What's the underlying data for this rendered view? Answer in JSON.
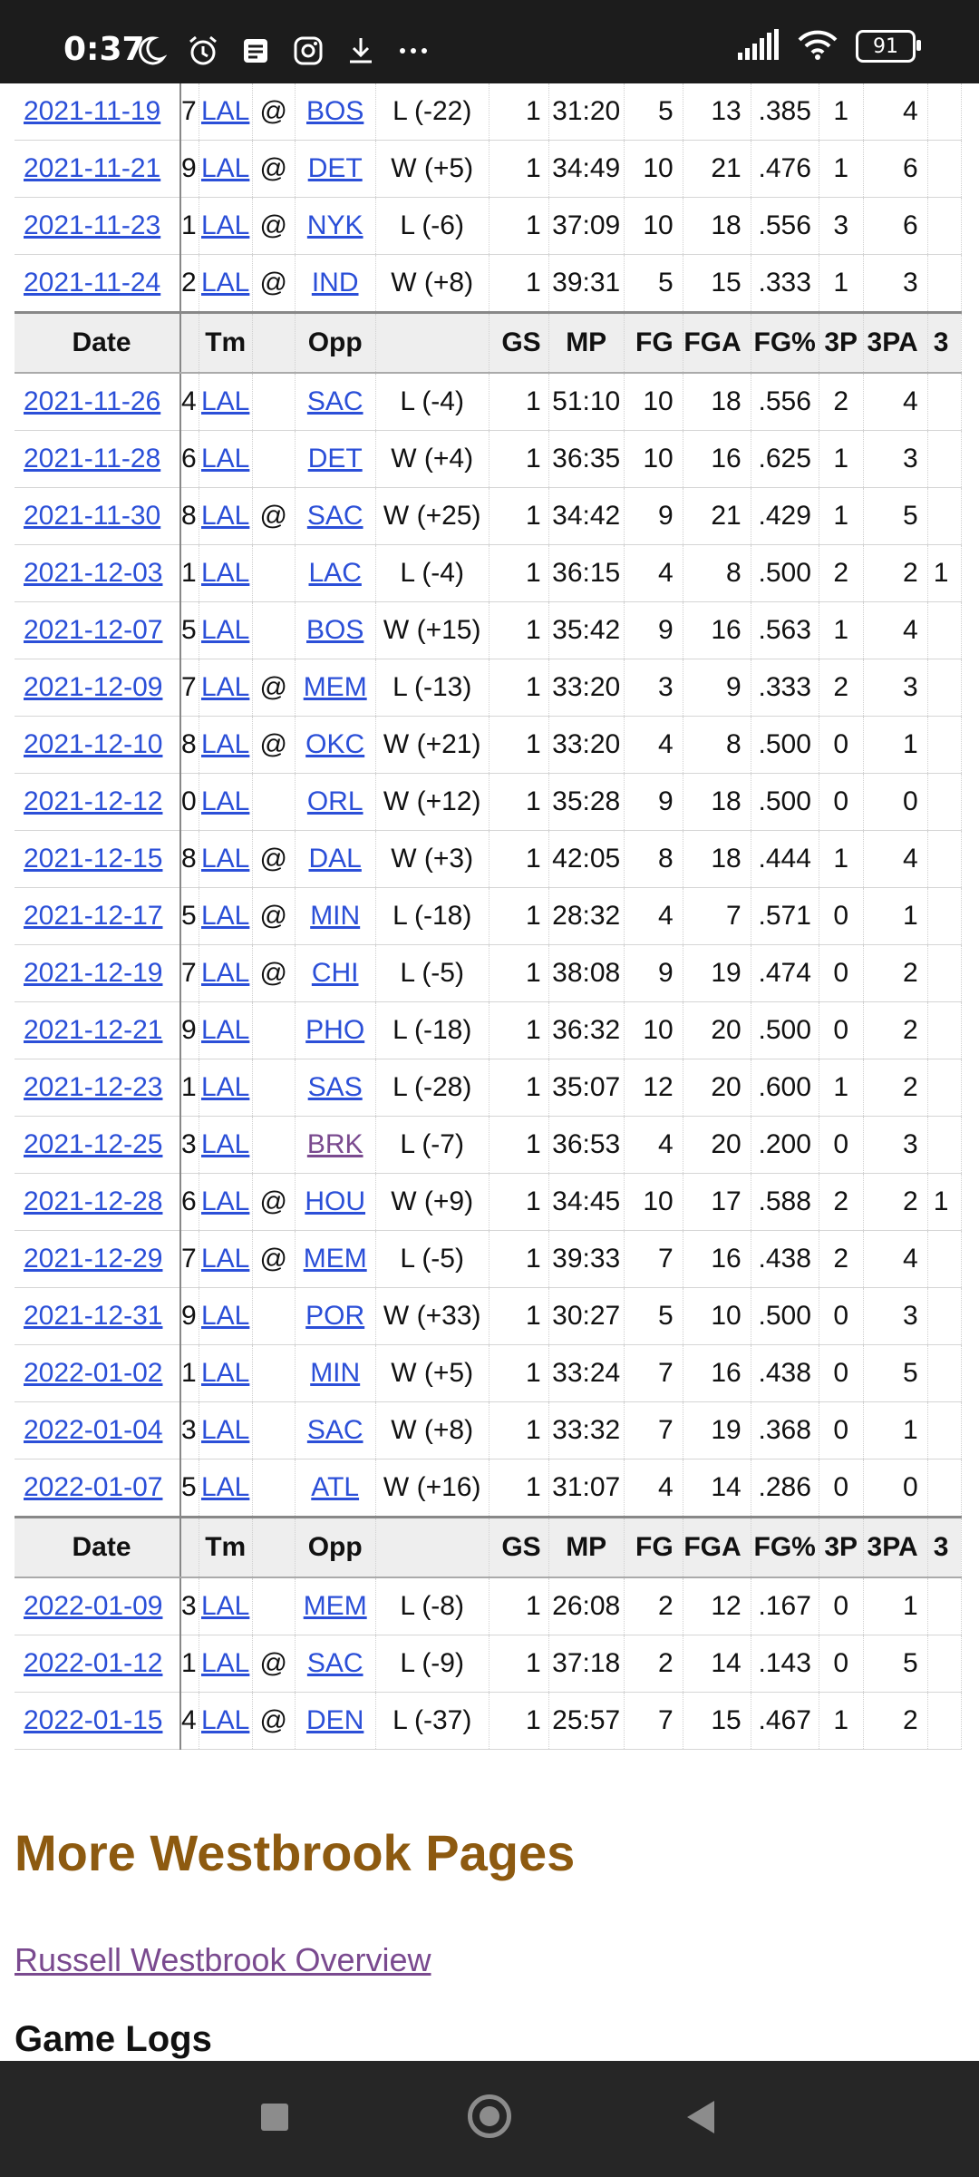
{
  "status": {
    "time": "0:37",
    "battery": "91"
  },
  "table": {
    "headers": [
      "Date",
      "",
      "Tm",
      "",
      "Opp",
      "",
      "GS",
      "MP",
      "FG",
      "FGA",
      "FG%",
      "3P",
      "3PA",
      "3"
    ],
    "groups": [
      {
        "rows": [
          {
            "date": "2021-11-19",
            "rk": "7",
            "tm": "LAL",
            "at": "@",
            "opp": "BOS",
            "res": "L (-22)",
            "gs": "1",
            "mp": "31:20",
            "fg": "5",
            "fga": "13",
            "fgp": ".385",
            "p3": "1",
            "p3a": "4",
            "cut": ""
          },
          {
            "date": "2021-11-21",
            "rk": "9",
            "tm": "LAL",
            "at": "@",
            "opp": "DET",
            "res": "W (+5)",
            "gs": "1",
            "mp": "34:49",
            "fg": "10",
            "fga": "21",
            "fgp": ".476",
            "p3": "1",
            "p3a": "6",
            "cut": ""
          },
          {
            "date": "2021-11-23",
            "rk": "1",
            "tm": "LAL",
            "at": "@",
            "opp": "NYK",
            "res": "L (-6)",
            "gs": "1",
            "mp": "37:09",
            "fg": "10",
            "fga": "18",
            "fgp": ".556",
            "p3": "3",
            "p3a": "6",
            "cut": ""
          },
          {
            "date": "2021-11-24",
            "rk": "2",
            "tm": "LAL",
            "at": "@",
            "opp": "IND",
            "res": "W (+8)",
            "gs": "1",
            "mp": "39:31",
            "fg": "5",
            "fga": "15",
            "fgp": ".333",
            "p3": "1",
            "p3a": "3",
            "cut": ""
          }
        ]
      },
      {
        "rows": [
          {
            "date": "2021-11-26",
            "rk": "4",
            "tm": "LAL",
            "at": "",
            "opp": "SAC",
            "res": "L (-4)",
            "gs": "1",
            "mp": "51:10",
            "fg": "10",
            "fga": "18",
            "fgp": ".556",
            "p3": "2",
            "p3a": "4",
            "cut": ""
          },
          {
            "date": "2021-11-28",
            "rk": "6",
            "tm": "LAL",
            "at": "",
            "opp": "DET",
            "res": "W (+4)",
            "gs": "1",
            "mp": "36:35",
            "fg": "10",
            "fga": "16",
            "fgp": ".625",
            "p3": "1",
            "p3a": "3",
            "cut": ""
          },
          {
            "date": "2021-11-30",
            "rk": "8",
            "tm": "LAL",
            "at": "@",
            "opp": "SAC",
            "res": "W (+25)",
            "gs": "1",
            "mp": "34:42",
            "fg": "9",
            "fga": "21",
            "fgp": ".429",
            "p3": "1",
            "p3a": "5",
            "cut": ""
          },
          {
            "date": "2021-12-03",
            "rk": "1",
            "tm": "LAL",
            "at": "",
            "opp": "LAC",
            "res": "L (-4)",
            "gs": "1",
            "mp": "36:15",
            "fg": "4",
            "fga": "8",
            "fgp": ".500",
            "p3": "2",
            "p3a": "2",
            "cut": "1"
          },
          {
            "date": "2021-12-07",
            "rk": "5",
            "tm": "LAL",
            "at": "",
            "opp": "BOS",
            "res": "W (+15)",
            "gs": "1",
            "mp": "35:42",
            "fg": "9",
            "fga": "16",
            "fgp": ".563",
            "p3": "1",
            "p3a": "4",
            "cut": ""
          },
          {
            "date": "2021-12-09",
            "rk": "7",
            "tm": "LAL",
            "at": "@",
            "opp": "MEM",
            "res": "L (-13)",
            "gs": "1",
            "mp": "33:20",
            "fg": "3",
            "fga": "9",
            "fgp": ".333",
            "p3": "2",
            "p3a": "3",
            "cut": ""
          },
          {
            "date": "2021-12-10",
            "rk": "8",
            "tm": "LAL",
            "at": "@",
            "opp": "OKC",
            "res": "W (+21)",
            "gs": "1",
            "mp": "33:20",
            "fg": "4",
            "fga": "8",
            "fgp": ".500",
            "p3": "0",
            "p3a": "1",
            "cut": ""
          },
          {
            "date": "2021-12-12",
            "rk": "0",
            "tm": "LAL",
            "at": "",
            "opp": "ORL",
            "res": "W (+12)",
            "gs": "1",
            "mp": "35:28",
            "fg": "9",
            "fga": "18",
            "fgp": ".500",
            "p3": "0",
            "p3a": "0",
            "cut": ""
          },
          {
            "date": "2021-12-15",
            "rk": "8",
            "tm": "LAL",
            "at": "@",
            "opp": "DAL",
            "res": "W (+3)",
            "gs": "1",
            "mp": "42:05",
            "fg": "8",
            "fga": "18",
            "fgp": ".444",
            "p3": "1",
            "p3a": "4",
            "cut": ""
          },
          {
            "date": "2021-12-17",
            "rk": "5",
            "tm": "LAL",
            "at": "@",
            "opp": "MIN",
            "res": "L (-18)",
            "gs": "1",
            "mp": "28:32",
            "fg": "4",
            "fga": "7",
            "fgp": ".571",
            "p3": "0",
            "p3a": "1",
            "cut": ""
          },
          {
            "date": "2021-12-19",
            "rk": "7",
            "tm": "LAL",
            "at": "@",
            "opp": "CHI",
            "res": "L (-5)",
            "gs": "1",
            "mp": "38:08",
            "fg": "9",
            "fga": "19",
            "fgp": ".474",
            "p3": "0",
            "p3a": "2",
            "cut": ""
          },
          {
            "date": "2021-12-21",
            "rk": "9",
            "tm": "LAL",
            "at": "",
            "opp": "PHO",
            "res": "L (-18)",
            "gs": "1",
            "mp": "36:32",
            "fg": "10",
            "fga": "20",
            "fgp": ".500",
            "p3": "0",
            "p3a": "2",
            "cut": ""
          },
          {
            "date": "2021-12-23",
            "rk": "1",
            "tm": "LAL",
            "at": "",
            "opp": "SAS",
            "res": "L (-28)",
            "gs": "1",
            "mp": "35:07",
            "fg": "12",
            "fga": "20",
            "fgp": ".600",
            "p3": "1",
            "p3a": "2",
            "cut": ""
          },
          {
            "date": "2021-12-25",
            "rk": "3",
            "tm": "LAL",
            "at": "",
            "opp": "BRK",
            "res": "L (-7)",
            "gs": "1",
            "mp": "36:53",
            "fg": "4",
            "fga": "20",
            "fgp": ".200",
            "p3": "0",
            "p3a": "3",
            "cut": ""
          },
          {
            "date": "2021-12-28",
            "rk": "6",
            "tm": "LAL",
            "at": "@",
            "opp": "HOU",
            "res": "W (+9)",
            "gs": "1",
            "mp": "34:45",
            "fg": "10",
            "fga": "17",
            "fgp": ".588",
            "p3": "2",
            "p3a": "2",
            "cut": "1"
          },
          {
            "date": "2021-12-29",
            "rk": "7",
            "tm": "LAL",
            "at": "@",
            "opp": "MEM",
            "res": "L (-5)",
            "gs": "1",
            "mp": "39:33",
            "fg": "7",
            "fga": "16",
            "fgp": ".438",
            "p3": "2",
            "p3a": "4",
            "cut": ""
          },
          {
            "date": "2021-12-31",
            "rk": "9",
            "tm": "LAL",
            "at": "",
            "opp": "POR",
            "res": "W (+33)",
            "gs": "1",
            "mp": "30:27",
            "fg": "5",
            "fga": "10",
            "fgp": ".500",
            "p3": "0",
            "p3a": "3",
            "cut": ""
          },
          {
            "date": "2022-01-02",
            "rk": "1",
            "tm": "LAL",
            "at": "",
            "opp": "MIN",
            "res": "W (+5)",
            "gs": "1",
            "mp": "33:24",
            "fg": "7",
            "fga": "16",
            "fgp": ".438",
            "p3": "0",
            "p3a": "5",
            "cut": ""
          },
          {
            "date": "2022-01-04",
            "rk": "3",
            "tm": "LAL",
            "at": "",
            "opp": "SAC",
            "res": "W (+8)",
            "gs": "1",
            "mp": "33:32",
            "fg": "7",
            "fga": "19",
            "fgp": ".368",
            "p3": "0",
            "p3a": "1",
            "cut": ""
          },
          {
            "date": "2022-01-07",
            "rk": "5",
            "tm": "LAL",
            "at": "",
            "opp": "ATL",
            "res": "W (+16)",
            "gs": "1",
            "mp": "31:07",
            "fg": "4",
            "fga": "14",
            "fgp": ".286",
            "p3": "0",
            "p3a": "0",
            "cut": ""
          }
        ]
      },
      {
        "rows": [
          {
            "date": "2022-01-09",
            "rk": "3",
            "tm": "LAL",
            "at": "",
            "opp": "MEM",
            "res": "L (-8)",
            "gs": "1",
            "mp": "26:08",
            "fg": "2",
            "fga": "12",
            "fgp": ".167",
            "p3": "0",
            "p3a": "1",
            "cut": ""
          },
          {
            "date": "2022-01-12",
            "rk": "1",
            "tm": "LAL",
            "at": "@",
            "opp": "SAC",
            "res": "L (-9)",
            "gs": "1",
            "mp": "37:18",
            "fg": "2",
            "fga": "14",
            "fgp": ".143",
            "p3": "0",
            "p3a": "5",
            "cut": ""
          },
          {
            "date": "2022-01-15",
            "rk": "4",
            "tm": "LAL",
            "at": "@",
            "opp": "DEN",
            "res": "L (-37)",
            "gs": "1",
            "mp": "25:57",
            "fg": "7",
            "fga": "15",
            "fgp": ".467",
            "p3": "1",
            "p3a": "2",
            "cut": ""
          }
        ]
      }
    ]
  },
  "more_pages": {
    "title": "More Westbrook Pages",
    "overview_link": "Russell Westbrook Overview",
    "game_logs": "Game Logs"
  },
  "colors": {
    "link": "#2b4fd8",
    "visited_link": "#7a4a8f",
    "section_title": "#8d5a10"
  },
  "icons": {
    "status_left": [
      "moon-icon",
      "alarm-icon",
      "notes-icon",
      "instagram-icon",
      "download-icon",
      "more-icon"
    ],
    "status_right": [
      "signal-icon",
      "wifi-icon",
      "battery-icon"
    ],
    "nav": [
      "recents-icon",
      "home-icon",
      "back-icon"
    ]
  }
}
